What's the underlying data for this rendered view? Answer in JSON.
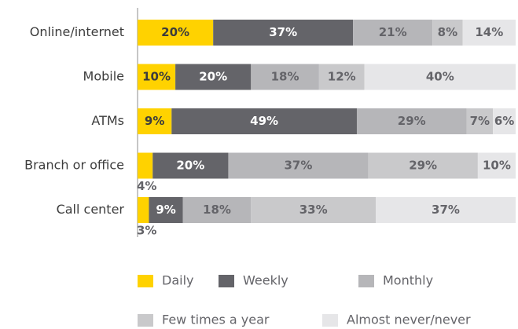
{
  "chart_data": {
    "type": "stacked-bar-horizontal",
    "categories": [
      "Online/internet",
      "Mobile",
      "ATMs",
      "Branch or office",
      "Call center"
    ],
    "xlim": [
      0,
      100
    ],
    "legend": "bottom",
    "series": [
      {
        "name": "Daily",
        "color": "#ffd200",
        "values": [
          20,
          10,
          9,
          4,
          3
        ],
        "value_labels": [
          "20%",
          "10%",
          "9%",
          "4%",
          "3%"
        ]
      },
      {
        "name": "Weekly",
        "color": "#646469",
        "values": [
          37,
          20,
          49,
          20,
          9
        ],
        "value_labels": [
          "37%",
          "20%",
          "49%",
          "20%",
          "9%"
        ]
      },
      {
        "name": "Monthly",
        "color": "#b6b6b9",
        "values": [
          21,
          18,
          29,
          37,
          18
        ],
        "value_labels": [
          "21%",
          "18%",
          "29%",
          "37%",
          "18%"
        ]
      },
      {
        "name": "Few times a year",
        "color": "#c9c9cb",
        "values": [
          8,
          12,
          7,
          29,
          33
        ],
        "value_labels": [
          "8%",
          "12%",
          "7%",
          "29%",
          "33%"
        ]
      },
      {
        "name": "Almost never/never",
        "color": "#e6e6e8",
        "values": [
          14,
          40,
          6,
          10,
          37
        ],
        "value_labels": [
          "14%",
          "40%",
          "6%",
          "10%",
          "37%"
        ]
      }
    ]
  }
}
